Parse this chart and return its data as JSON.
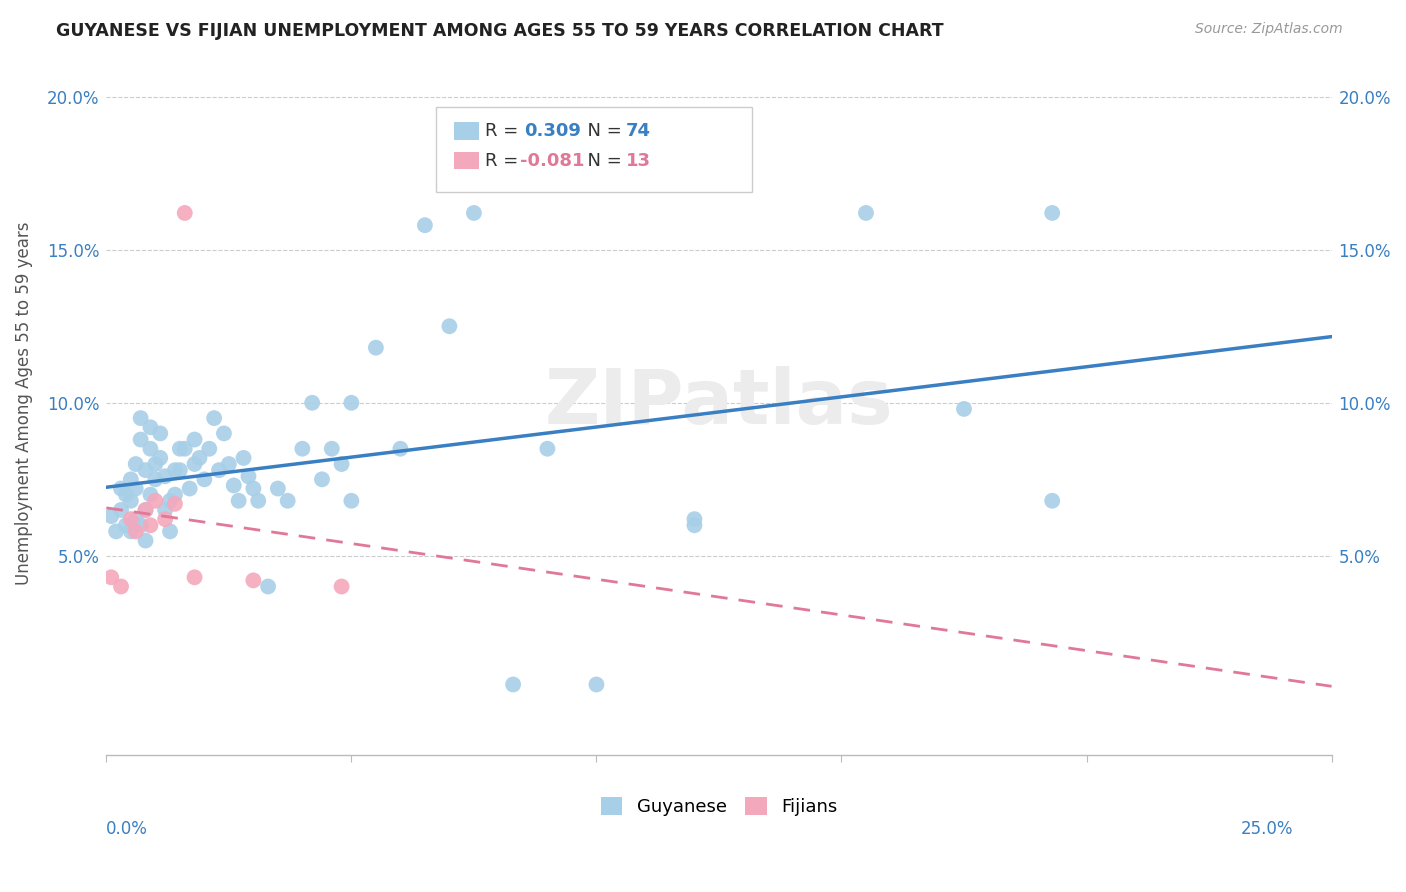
{
  "title": "GUYANESE VS FIJIAN UNEMPLOYMENT AMONG AGES 55 TO 59 YEARS CORRELATION CHART",
  "source": "Source: ZipAtlas.com",
  "ylabel": "Unemployment Among Ages 55 to 59 years",
  "ytick_vals": [
    0.0,
    0.05,
    0.1,
    0.15,
    0.2
  ],
  "ytick_labels": [
    "",
    "5.0%",
    "10.0%",
    "15.0%",
    "20.0%"
  ],
  "xlim": [
    0.0,
    0.25
  ],
  "ylim": [
    -0.015,
    0.215
  ],
  "legend1_r": "0.309",
  "legend1_n": "74",
  "legend2_r": "-0.081",
  "legend2_n": "13",
  "guyanese_color": "#a8cfe8",
  "fijian_color": "#f4a8bc",
  "trend_blue": "#3a7fc1",
  "trend_pink": "#e07898",
  "watermark": "ZIPatlas",
  "guyanese_x": [
    0.001,
    0.002,
    0.003,
    0.003,
    0.004,
    0.004,
    0.005,
    0.005,
    0.005,
    0.006,
    0.006,
    0.006,
    0.007,
    0.007,
    0.007,
    0.008,
    0.008,
    0.008,
    0.009,
    0.009,
    0.009,
    0.01,
    0.01,
    0.011,
    0.011,
    0.012,
    0.012,
    0.013,
    0.013,
    0.014,
    0.014,
    0.015,
    0.015,
    0.016,
    0.017,
    0.018,
    0.018,
    0.019,
    0.02,
    0.021,
    0.022,
    0.023,
    0.024,
    0.025,
    0.026,
    0.027,
    0.028,
    0.029,
    0.03,
    0.031,
    0.033,
    0.035,
    0.037,
    0.04,
    0.042,
    0.044,
    0.046,
    0.048,
    0.05,
    0.055,
    0.06,
    0.065,
    0.07,
    0.075,
    0.083,
    0.09,
    0.1,
    0.12,
    0.155,
    0.175,
    0.193,
    0.12,
    0.05,
    0.193
  ],
  "guyanese_y": [
    0.063,
    0.058,
    0.072,
    0.065,
    0.07,
    0.06,
    0.075,
    0.068,
    0.058,
    0.08,
    0.072,
    0.062,
    0.095,
    0.088,
    0.06,
    0.078,
    0.065,
    0.055,
    0.092,
    0.085,
    0.07,
    0.08,
    0.075,
    0.09,
    0.082,
    0.076,
    0.065,
    0.068,
    0.058,
    0.078,
    0.07,
    0.085,
    0.078,
    0.085,
    0.072,
    0.088,
    0.08,
    0.082,
    0.075,
    0.085,
    0.095,
    0.078,
    0.09,
    0.08,
    0.073,
    0.068,
    0.082,
    0.076,
    0.072,
    0.068,
    0.04,
    0.072,
    0.068,
    0.085,
    0.1,
    0.075,
    0.085,
    0.08,
    0.1,
    0.118,
    0.085,
    0.158,
    0.125,
    0.162,
    0.008,
    0.085,
    0.008,
    0.06,
    0.162,
    0.098,
    0.068,
    0.062,
    0.068,
    0.162
  ],
  "fijian_x": [
    0.001,
    0.003,
    0.005,
    0.006,
    0.008,
    0.009,
    0.01,
    0.012,
    0.014,
    0.016,
    0.018,
    0.03,
    0.048
  ],
  "fijian_y": [
    0.043,
    0.04,
    0.062,
    0.058,
    0.065,
    0.06,
    0.068,
    0.062,
    0.067,
    0.162,
    0.043,
    0.042,
    0.04
  ]
}
